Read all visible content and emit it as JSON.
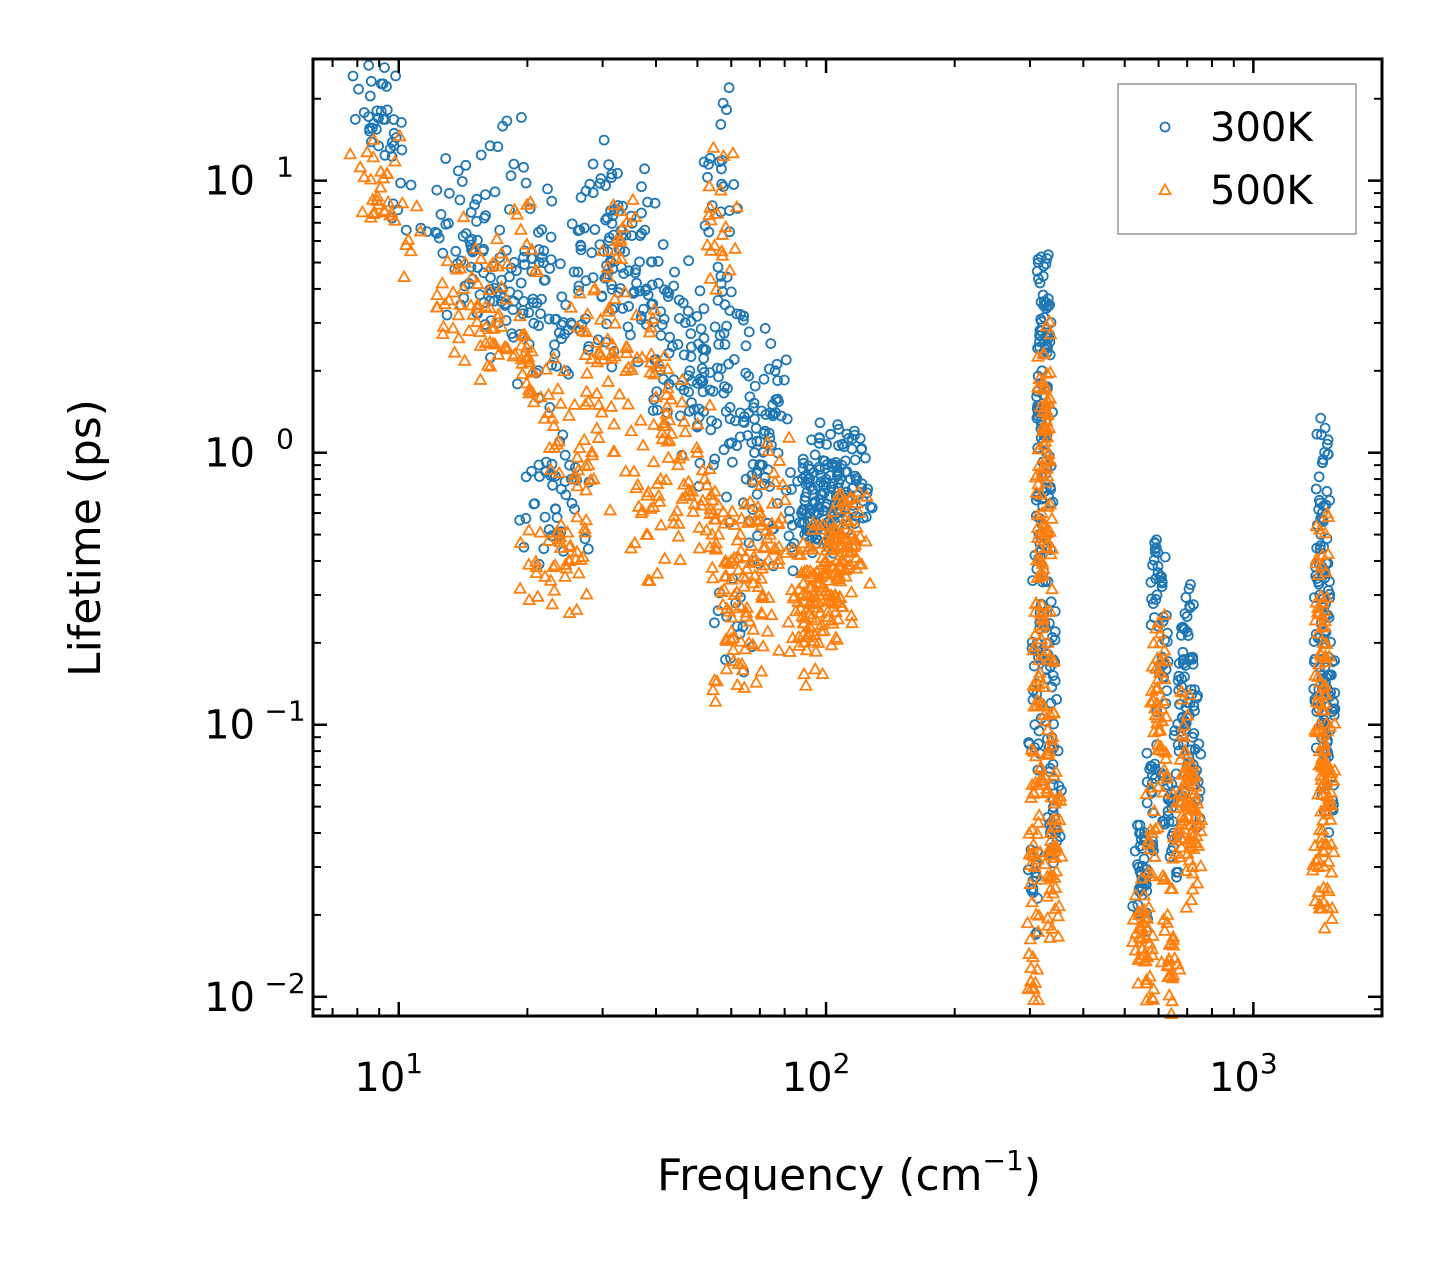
{
  "chart_data": {
    "type": "scatter",
    "title": "",
    "xlabel": "Frequency (cm",
    "xlabel_sup": "−1",
    "xlabel_suffix": ")",
    "ylabel": "Lifetime (ps)",
    "xscale": "log",
    "yscale": "log",
    "xlim": [
      6.3,
      2000
    ],
    "ylim": [
      0.0085,
      28
    ],
    "x_ticks": [
      {
        "value": 10,
        "base": "10",
        "exp": "1"
      },
      {
        "value": 100,
        "base": "10",
        "exp": "2"
      },
      {
        "value": 1000,
        "base": "10",
        "exp": "3"
      }
    ],
    "y_ticks": [
      {
        "value": 0.01,
        "base": "10",
        "exp": "−2"
      },
      {
        "value": 0.1,
        "base": "10",
        "exp": "−1"
      },
      {
        "value": 1,
        "base": "10",
        "exp": "0"
      },
      {
        "value": 10,
        "base": "10",
        "exp": "1"
      }
    ],
    "legend": {
      "position": "top-right",
      "entries": [
        "300K",
        "500K"
      ]
    },
    "series": [
      {
        "name": "300K",
        "marker": "circle",
        "color": "#1f77b4",
        "points": [
          [
            8.3,
            17.8
          ],
          [
            8.5,
            17.2
          ],
          [
            9.1,
            18.0
          ],
          [
            9.3,
            16.8
          ],
          [
            9.4,
            18.2
          ],
          [
            10.1,
            9.8
          ],
          [
            12.3,
            6.4
          ],
          [
            13.6,
            5.5
          ],
          [
            13.9,
            8.5
          ],
          [
            14.2,
            3.7
          ],
          [
            14.8,
            6.1
          ],
          [
            15.3,
            4.8
          ],
          [
            15.8,
            5.6
          ],
          [
            16.4,
            4.4
          ],
          [
            16.8,
            9.1
          ],
          [
            17.1,
            3.0
          ],
          [
            17.5,
            4.0
          ],
          [
            18.2,
            3.9
          ],
          [
            18.6,
            11.5
          ],
          [
            19.0,
            3.8
          ],
          [
            19.6,
            3.6
          ],
          [
            20.2,
            2.5
          ],
          [
            20.8,
            0.65
          ],
          [
            21.3,
            5.0
          ],
          [
            21.6,
            6.6
          ],
          [
            21.9,
            4.3
          ],
          [
            22.0,
            0.58
          ],
          [
            22.5,
            3.1
          ],
          [
            22.8,
            2.1
          ],
          [
            23.3,
            0.62
          ],
          [
            23.8,
            1.1
          ],
          [
            24.6,
            0.7
          ],
          [
            25.3,
            3.0
          ],
          [
            25.8,
            0.62
          ],
          [
            26.4,
            4.1
          ],
          [
            27.2,
            6.7
          ],
          [
            28.0,
            9.7
          ],
          [
            28.5,
            4.4
          ],
          [
            29.3,
            2.6
          ],
          [
            30.2,
            5.5
          ],
          [
            31.0,
            6.0
          ],
          [
            31.4,
            5.0
          ],
          [
            32.0,
            7.8
          ],
          [
            32.6,
            8.1
          ],
          [
            33.2,
            4.8
          ],
          [
            34.4,
            2.9
          ],
          [
            35.0,
            7.4
          ],
          [
            36.0,
            4.2
          ],
          [
            37.0,
            6.4
          ],
          [
            38.0,
            4.0
          ],
          [
            39.0,
            3.5
          ],
          [
            40.0,
            2.2
          ],
          [
            41.0,
            3.3
          ],
          [
            42.5,
            1.4
          ],
          [
            44.0,
            4.1
          ],
          [
            45.0,
            2.5
          ],
          [
            46.5,
            1.7
          ],
          [
            48.0,
            2.0
          ],
          [
            50.0,
            1.8
          ],
          [
            52.0,
            2.4
          ],
          [
            53.5,
            1.7
          ],
          [
            54.5,
            0.9
          ],
          [
            55.0,
            2.9
          ],
          [
            56.0,
            1.9
          ],
          [
            56.7,
            16.1
          ],
          [
            57.0,
            9.7
          ],
          [
            57.5,
            9.5
          ],
          [
            58.0,
            3.5
          ],
          [
            58.5,
            0.25
          ],
          [
            60.0,
            3.9
          ],
          [
            61.0,
            2.2
          ],
          [
            62.0,
            0.23
          ],
          [
            63.0,
            1.4
          ],
          [
            64.0,
            1.3
          ],
          [
            65.0,
            0.8
          ],
          [
            66.0,
            0.56
          ],
          [
            68.0,
            1.0
          ],
          [
            70.0,
            1.1
          ],
          [
            71.0,
            0.9
          ],
          [
            72.0,
            1.2
          ],
          [
            73.0,
            0.55
          ],
          [
            74.0,
            1.4
          ],
          [
            75.0,
            1.5
          ],
          [
            76.0,
            2.0
          ],
          [
            88.0,
            0.55
          ],
          [
            90.0,
            0.6
          ],
          [
            92.0,
            0.75
          ],
          [
            94.0,
            0.65
          ],
          [
            96.0,
            0.6
          ],
          [
            98.0,
            0.7
          ],
          [
            100.0,
            0.8
          ],
          [
            103.0,
            0.75
          ],
          [
            105.0,
            0.9
          ],
          [
            108.0,
            0.7
          ],
          [
            111.0,
            0.85
          ],
          [
            114.0,
            0.8
          ],
          [
            117.0,
            0.82
          ],
          [
            305.0,
            0.025
          ],
          [
            308.0,
            0.1
          ],
          [
            312.0,
            0.2
          ],
          [
            315.0,
            0.5
          ],
          [
            318.0,
            1.3
          ],
          [
            320.0,
            2.0
          ],
          [
            322.0,
            3.8
          ],
          [
            324.0,
            3.6
          ],
          [
            326.0,
            2.4
          ],
          [
            328.0,
            1.0
          ],
          [
            330.0,
            0.5
          ],
          [
            333.0,
            0.2
          ],
          [
            336.0,
            0.12
          ],
          [
            340.0,
            0.06
          ],
          [
            345.0,
            0.04
          ],
          [
            540.0,
            0.03
          ],
          [
            550.0,
            0.025
          ],
          [
            565.0,
            0.028
          ],
          [
            580.0,
            0.07
          ],
          [
            595.0,
            0.3
          ],
          [
            605.0,
            0.35
          ],
          [
            615.0,
            0.15
          ],
          [
            630.0,
            0.06
          ],
          [
            650.0,
            0.04
          ],
          [
            670.0,
            0.08
          ],
          [
            690.0,
            0.15
          ],
          [
            700.0,
            0.22
          ],
          [
            710.0,
            0.12
          ],
          [
            720.0,
            0.09
          ],
          [
            730.0,
            0.06
          ],
          [
            1420.0,
            0.12
          ],
          [
            1430.0,
            0.3
          ],
          [
            1440.0,
            0.5
          ],
          [
            1450.0,
            0.92
          ],
          [
            1460.0,
            0.45
          ],
          [
            1470.0,
            0.2
          ],
          [
            1480.0,
            0.1
          ],
          [
            1490.0,
            0.06
          ],
          [
            1500.0,
            0.13
          ]
        ]
      },
      {
        "name": "500K",
        "marker": "triangle",
        "color": "#ff7f0e",
        "points": [
          [
            8.3,
            10.3
          ],
          [
            8.6,
            10.1
          ],
          [
            9.2,
            10.2
          ],
          [
            9.4,
            10.6
          ],
          [
            10.4,
            5.8
          ],
          [
            12.3,
            3.8
          ],
          [
            13.8,
            3.2
          ],
          [
            14.3,
            5.0
          ],
          [
            14.6,
            2.8
          ],
          [
            15.3,
            3.4
          ],
          [
            16.0,
            2.9
          ],
          [
            16.8,
            2.5
          ],
          [
            17.4,
            5.4
          ],
          [
            18.0,
            2.4
          ],
          [
            18.7,
            2.3
          ],
          [
            19.3,
            6.6
          ],
          [
            19.9,
            2.2
          ],
          [
            20.6,
            2.0
          ],
          [
            21.0,
            0.38
          ],
          [
            21.5,
            1.6
          ],
          [
            22.0,
            0.35
          ],
          [
            22.4,
            1.4
          ],
          [
            23.0,
            0.38
          ],
          [
            23.7,
            1.1
          ],
          [
            24.5,
            0.35
          ],
          [
            25.1,
            0.4
          ],
          [
            25.8,
            1.5
          ],
          [
            26.4,
            0.36
          ],
          [
            27.0,
            2.8
          ],
          [
            27.8,
            0.9
          ],
          [
            28.6,
            0.8
          ],
          [
            29.4,
            1.5
          ],
          [
            30.1,
            2.2
          ],
          [
            31.0,
            3.3
          ],
          [
            31.6,
            2.5
          ],
          [
            32.3,
            5.2
          ],
          [
            33.0,
            6.1
          ],
          [
            34.0,
            2.0
          ],
          [
            35.0,
            1.2
          ],
          [
            36.0,
            3.2
          ],
          [
            37.0,
            0.6
          ],
          [
            38.0,
            0.5
          ],
          [
            39.0,
            2.3
          ],
          [
            40.0,
            1.6
          ],
          [
            41.0,
            0.8
          ],
          [
            42.5,
            1.1
          ],
          [
            44.0,
            0.55
          ],
          [
            45.0,
            0.9
          ],
          [
            46.5,
            1.3
          ],
          [
            48.0,
            0.7
          ],
          [
            50.0,
            1.0
          ],
          [
            52.0,
            0.8
          ],
          [
            53.5,
            0.45
          ],
          [
            54.5,
            0.6
          ],
          [
            56.0,
            0.5
          ],
          [
            56.7,
            9.2
          ],
          [
            57.0,
            5.5
          ],
          [
            57.2,
            5.3
          ],
          [
            58.0,
            0.35
          ],
          [
            58.5,
            0.16
          ],
          [
            60.0,
            0.4
          ],
          [
            61.0,
            0.3
          ],
          [
            62.0,
            0.14
          ],
          [
            63.0,
            0.5
          ],
          [
            64.0,
            0.35
          ],
          [
            65.0,
            0.25
          ],
          [
            66.0,
            0.2
          ],
          [
            68.0,
            0.4
          ],
          [
            70.0,
            0.6
          ],
          [
            71.0,
            0.3
          ],
          [
            72.0,
            0.45
          ],
          [
            73.0,
            0.22
          ],
          [
            74.0,
            0.5
          ],
          [
            75.0,
            0.65
          ],
          [
            76.0,
            0.78
          ],
          [
            88.0,
            0.25
          ],
          [
            90.0,
            0.3
          ],
          [
            92.0,
            0.35
          ],
          [
            94.0,
            0.28
          ],
          [
            96.0,
            0.2
          ],
          [
            98.0,
            0.32
          ],
          [
            100.0,
            0.4
          ],
          [
            103.0,
            0.38
          ],
          [
            105.0,
            0.3
          ],
          [
            108.0,
            0.42
          ],
          [
            111.0,
            0.45
          ],
          [
            114.0,
            0.5
          ],
          [
            117.0,
            0.48
          ],
          [
            305.0,
            0.014
          ],
          [
            308.0,
            0.03
          ],
          [
            312.0,
            0.06
          ],
          [
            315.0,
            0.15
          ],
          [
            318.0,
            0.35
          ],
          [
            320.0,
            0.6
          ],
          [
            322.0,
            1.2
          ],
          [
            324.0,
            2.3
          ],
          [
            326.0,
            1.1
          ],
          [
            328.0,
            0.45
          ],
          [
            330.0,
            0.2
          ],
          [
            333.0,
            0.08
          ],
          [
            336.0,
            0.04
          ],
          [
            340.0,
            0.024
          ],
          [
            345.0,
            0.045
          ],
          [
            540.0,
            0.02
          ],
          [
            550.0,
            0.015
          ],
          [
            565.0,
            0.014
          ],
          [
            580.0,
            0.04
          ],
          [
            595.0,
            0.12
          ],
          [
            605.0,
            0.2
          ],
          [
            615.0,
            0.08
          ],
          [
            630.0,
            0.02
          ],
          [
            650.0,
            0.012
          ],
          [
            670.0,
            0.04
          ],
          [
            690.0,
            0.09
          ],
          [
            700.0,
            0.06
          ],
          [
            710.0,
            0.05
          ],
          [
            720.0,
            0.03
          ],
          [
            730.0,
            0.045
          ],
          [
            1420.0,
            0.03
          ],
          [
            1430.0,
            0.08
          ],
          [
            1440.0,
            0.18
          ],
          [
            1450.0,
            0.42
          ],
          [
            1460.0,
            0.2
          ],
          [
            1470.0,
            0.08
          ],
          [
            1480.0,
            0.05
          ],
          [
            1490.0,
            0.025
          ],
          [
            1500.0,
            0.07
          ]
        ]
      }
    ]
  }
}
